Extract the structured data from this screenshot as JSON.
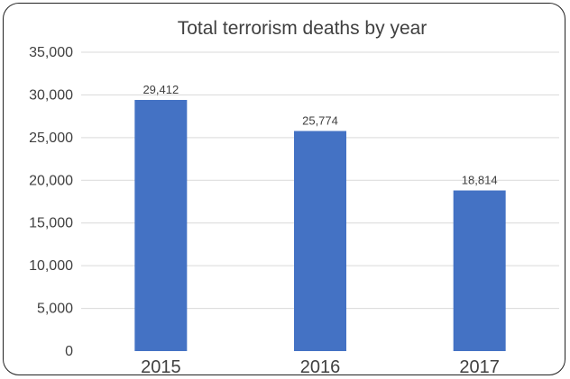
{
  "chart_data": {
    "type": "bar",
    "title": "Total terrorism deaths by year",
    "categories": [
      "2015",
      "2016",
      "2017"
    ],
    "values": [
      29412,
      25774,
      18814
    ],
    "data_labels": [
      "29,412",
      "25,774",
      "18,814"
    ],
    "ylim": [
      0,
      35000
    ],
    "yticks": [
      0,
      5000,
      10000,
      15000,
      20000,
      25000,
      30000,
      35000
    ],
    "ytick_labels": [
      "0",
      "5,000",
      "10,000",
      "15,000",
      "20,000",
      "25,000",
      "30,000",
      "35,000"
    ],
    "grid": true,
    "legend": "none",
    "bar_color": "#4472C4"
  }
}
